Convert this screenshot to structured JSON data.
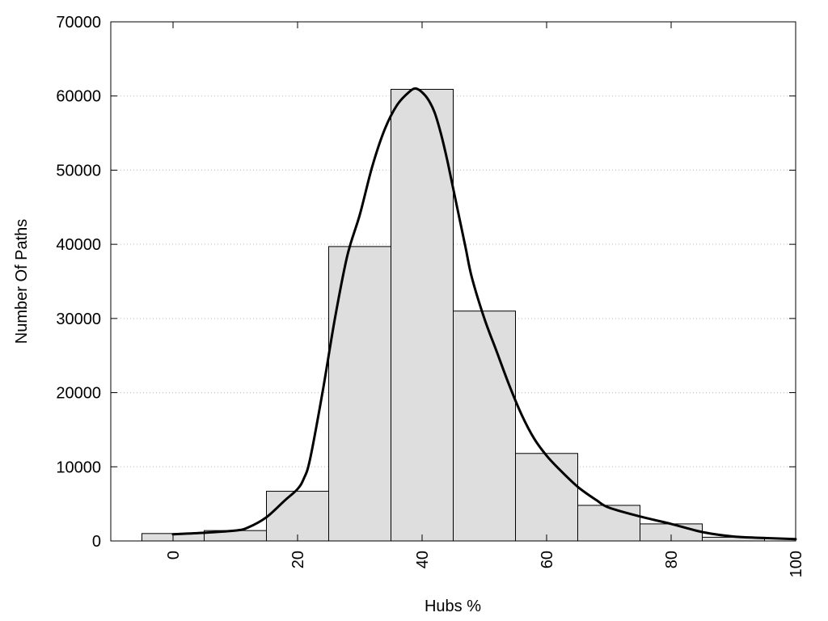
{
  "chart_data": {
    "type": "bar",
    "title": "",
    "xlabel": "Hubs %",
    "ylabel": "Number Of Paths",
    "xlim": [
      -10,
      100
    ],
    "ylim": [
      0,
      70000
    ],
    "x_ticks": [
      0,
      20,
      40,
      60,
      80,
      100
    ],
    "y_ticks": [
      0,
      10000,
      20000,
      30000,
      40000,
      50000,
      60000,
      70000
    ],
    "grid": "horizontal dotted",
    "legend": "none",
    "bins": [
      {
        "center": 0,
        "width": 10,
        "value": 1000
      },
      {
        "center": 10,
        "width": 10,
        "value": 1400
      },
      {
        "center": 20,
        "width": 10,
        "value": 6700
      },
      {
        "center": 30,
        "width": 10,
        "value": 39700
      },
      {
        "center": 40,
        "width": 10,
        "value": 60900
      },
      {
        "center": 50,
        "width": 10,
        "value": 31000
      },
      {
        "center": 60,
        "width": 10,
        "value": 11800
      },
      {
        "center": 70,
        "width": 10,
        "value": 4800
      },
      {
        "center": 80,
        "width": 10,
        "value": 2300
      },
      {
        "center": 90,
        "width": 10,
        "value": 500
      }
    ],
    "curve": {
      "x": [
        0,
        5,
        10,
        12,
        15,
        18,
        20,
        21,
        22,
        24,
        26,
        28,
        30,
        32,
        34,
        36,
        38,
        39,
        40,
        41,
        42,
        43,
        44,
        45,
        46,
        47,
        48,
        50,
        52,
        54,
        56,
        58,
        60,
        62,
        65,
        68,
        70,
        75,
        80,
        85,
        90,
        95,
        100
      ],
      "y": [
        900,
        1100,
        1400,
        1800,
        3200,
        5500,
        7000,
        8400,
        11000,
        20000,
        30000,
        38500,
        44000,
        50500,
        55500,
        58800,
        60600,
        61000,
        60500,
        59500,
        57800,
        55000,
        51500,
        47500,
        43500,
        39500,
        35500,
        30000,
        25500,
        21000,
        17000,
        13800,
        11500,
        9700,
        7300,
        5500,
        4500,
        3300,
        2300,
        1200,
        600,
        400,
        250
      ]
    },
    "colors": {
      "bar_fill": "#dedede",
      "bar_stroke": "#000000",
      "curve": "#000000",
      "grid": "#bbbbbb"
    }
  }
}
